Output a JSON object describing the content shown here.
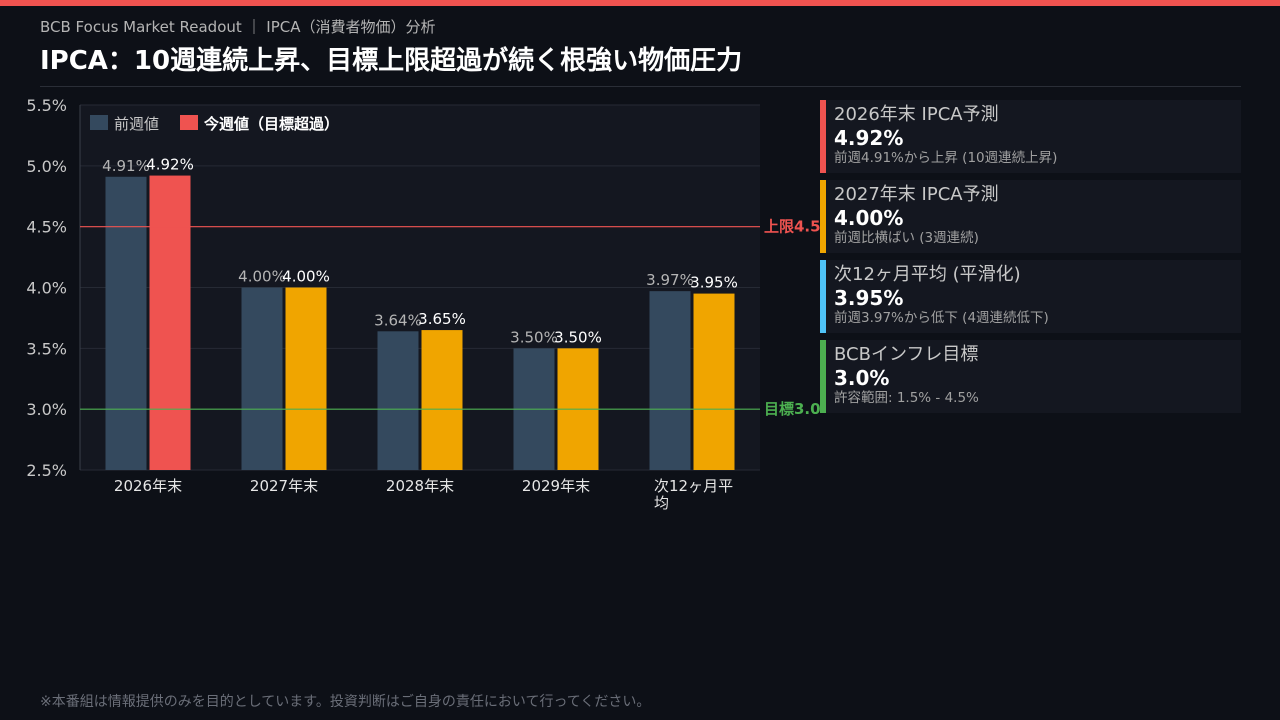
{
  "colors": {
    "accent": "#ef5350",
    "prev": "#34495e",
    "current_above": "#ef5350",
    "current": "#f0a500",
    "target": "#4caf50",
    "cyan": "#4fc3f7",
    "background": "#0d1017",
    "plot_bg": "#141720"
  },
  "header": {
    "subtitle": "BCB Focus Market Readout ｜ IPCA（消費者物価）分析",
    "title": "IPCA：10週連続上昇、目標上限超過が続く根強い物価圧力"
  },
  "chart_data": {
    "type": "bar",
    "categories": [
      "2026年末",
      "2027年末",
      "2028年末",
      "2029年末",
      "次12ヶ月平均"
    ],
    "series": [
      {
        "name": "前週値",
        "values": [
          4.91,
          4.0,
          3.64,
          3.5,
          3.97
        ],
        "labels": [
          "4.91%",
          "4.00%",
          "3.64%",
          "3.50%",
          "3.97%"
        ]
      },
      {
        "name": "今週値（目標超過）",
        "values": [
          4.92,
          4.0,
          3.65,
          3.5,
          3.95
        ],
        "labels": [
          "4.92%",
          "4.00%",
          "3.65%",
          "3.50%",
          "3.95%"
        ]
      }
    ],
    "ylim": [
      2.5,
      5.5
    ],
    "yticks": [
      "2.5%",
      "3.0%",
      "3.5%",
      "4.0%",
      "4.5%",
      "5.0%",
      "5.5%"
    ],
    "ytick_values": [
      2.5,
      3.0,
      3.5,
      4.0,
      4.5,
      5.0,
      5.5
    ],
    "reference_lines": [
      {
        "value": 4.5,
        "label": "上限4.5",
        "color": "#ef5350"
      },
      {
        "value": 3.0,
        "label": "目標3.0",
        "color": "#4caf50"
      }
    ],
    "legend_position": "top-left",
    "grid": true
  },
  "cards": [
    {
      "label": "2026年末 IPCA予測",
      "value": "4.92%",
      "note": "前週4.91%から上昇 (10週連続上昇)",
      "color": "#ef5350"
    },
    {
      "label": "2027年末 IPCA予測",
      "value": "4.00%",
      "note": "前週比横ばい (3週連続)",
      "color": "#f0a500"
    },
    {
      "label": "次12ヶ月平均 (平滑化)",
      "value": "3.95%",
      "note": "前週3.97%から低下 (4週連続低下)",
      "color": "#4fc3f7"
    },
    {
      "label": "BCBインフレ目標",
      "value": "3.0%",
      "note": "許容範囲: 1.5% - 4.5%",
      "color": "#4caf50"
    }
  ],
  "footer": {
    "disclaimer": "※本番組は情報提供のみを目的としています。投資判断はご自身の責任において行ってください。"
  }
}
